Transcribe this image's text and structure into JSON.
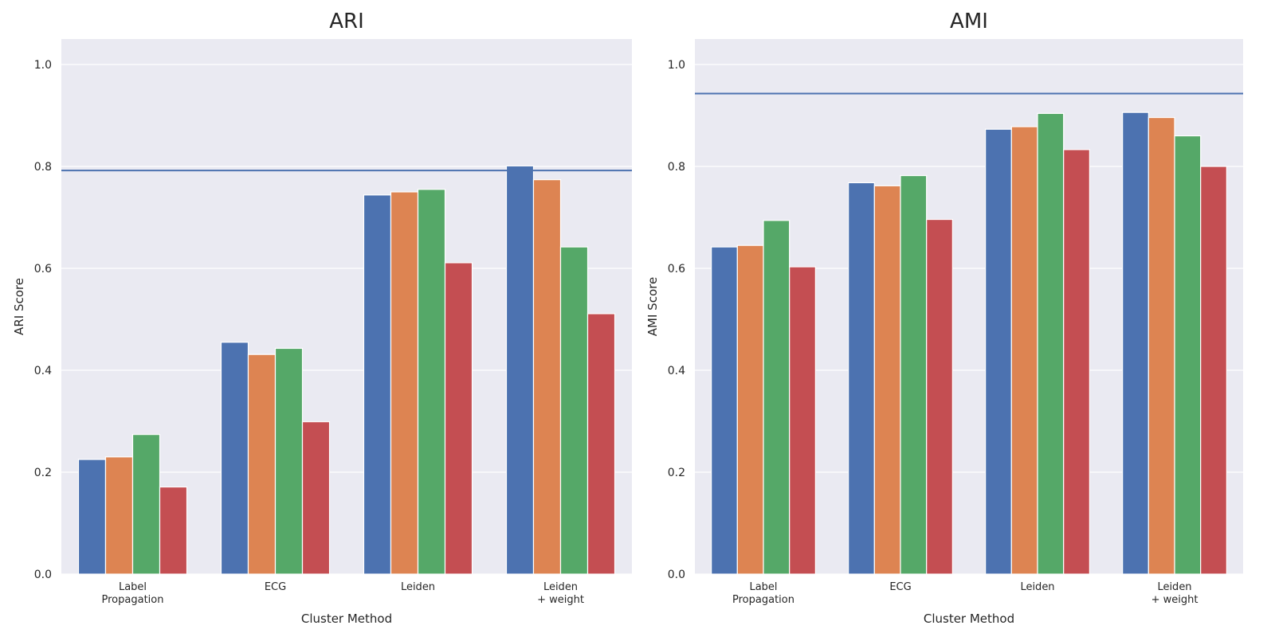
{
  "chart_data": [
    {
      "type": "bar",
      "title": "ARI",
      "xlabel": "Cluster Method",
      "ylabel": "ARI Score",
      "ylim": [
        0,
        1.05
      ],
      "yticks": [
        "0.0",
        "0.2",
        "0.4",
        "0.6",
        "0.8",
        "1.0"
      ],
      "categories": [
        [
          "Label",
          "Propagation"
        ],
        [
          "ECG"
        ],
        [
          "Leiden"
        ],
        [
          "Leiden",
          "+ weight"
        ]
      ],
      "series": [
        {
          "color": "#4c72b0",
          "values": [
            0.225,
            0.455,
            0.744,
            0.801
          ]
        },
        {
          "color": "#dd8452",
          "values": [
            0.23,
            0.431,
            0.75,
            0.774
          ]
        },
        {
          "color": "#55a868",
          "values": [
            0.274,
            0.443,
            0.755,
            0.642
          ]
        },
        {
          "color": "#c44e52",
          "values": [
            0.171,
            0.299,
            0.611,
            0.511
          ]
        }
      ],
      "reference_line": 0.792,
      "reference_color": "#4c72b0",
      "grid": true
    },
    {
      "type": "bar",
      "title": "AMI",
      "xlabel": "Cluster Method",
      "ylabel": "AMI Score",
      "ylim": [
        0,
        1.05
      ],
      "yticks": [
        "0.0",
        "0.2",
        "0.4",
        "0.6",
        "0.8",
        "1.0"
      ],
      "categories": [
        [
          "Label",
          "Propagation"
        ],
        [
          "ECG"
        ],
        [
          "Leiden"
        ],
        [
          "Leiden",
          "+ weight"
        ]
      ],
      "series": [
        {
          "color": "#4c72b0",
          "values": [
            0.642,
            0.768,
            0.873,
            0.906
          ]
        },
        {
          "color": "#dd8452",
          "values": [
            0.645,
            0.762,
            0.878,
            0.896
          ]
        },
        {
          "color": "#55a868",
          "values": [
            0.694,
            0.782,
            0.904,
            0.86
          ]
        },
        {
          "color": "#c44e52",
          "values": [
            0.603,
            0.696,
            0.833,
            0.8
          ]
        }
      ],
      "reference_line": 0.943,
      "reference_color": "#4c72b0",
      "grid": true
    }
  ]
}
